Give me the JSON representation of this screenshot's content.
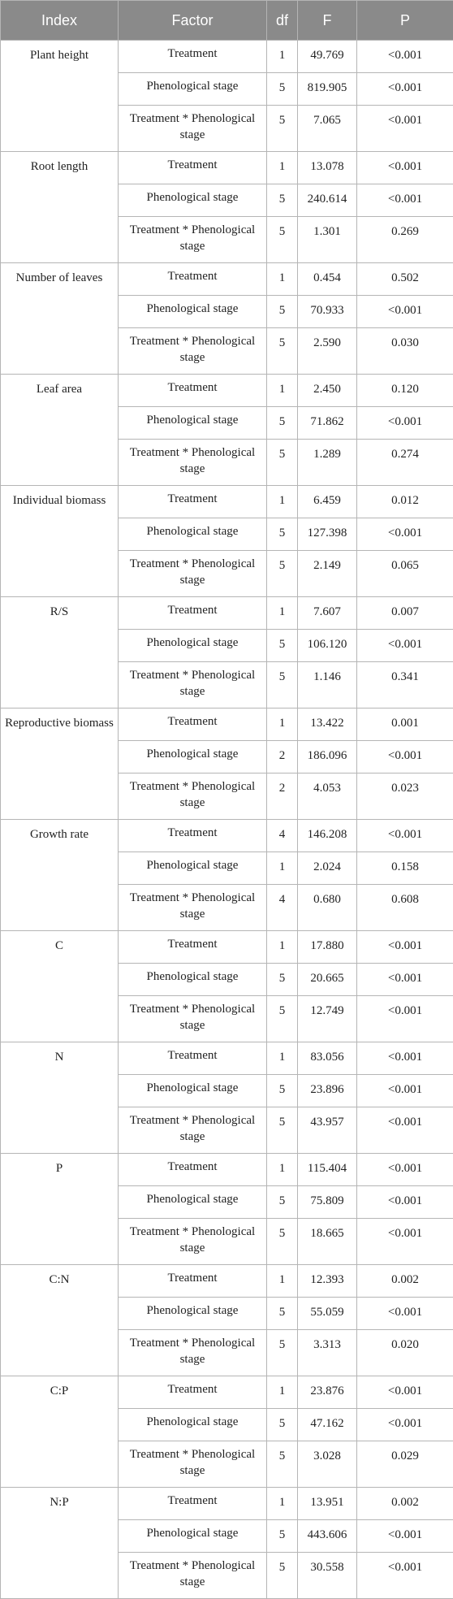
{
  "table": {
    "headers": [
      "Index",
      "Factor",
      "df",
      "F",
      "P"
    ],
    "groups": [
      {
        "index": "Plant height",
        "rows": [
          {
            "factor": "Treatment",
            "df": "1",
            "f": "49.769",
            "p": "<0.001"
          },
          {
            "factor": "Phenological stage",
            "df": "5",
            "f": "819.905",
            "p": "<0.001"
          },
          {
            "factor": "Treatment * Phenological stage",
            "df": "5",
            "f": "7.065",
            "p": "<0.001"
          }
        ]
      },
      {
        "index": "Root length",
        "rows": [
          {
            "factor": "Treatment",
            "df": "1",
            "f": "13.078",
            "p": "<0.001"
          },
          {
            "factor": "Phenological stage",
            "df": "5",
            "f": "240.614",
            "p": "<0.001"
          },
          {
            "factor": "Treatment * Phenological stage",
            "df": "5",
            "f": "1.301",
            "p": "0.269"
          }
        ]
      },
      {
        "index": "Number of leaves",
        "rows": [
          {
            "factor": "Treatment",
            "df": "1",
            "f": "0.454",
            "p": "0.502"
          },
          {
            "factor": "Phenological stage",
            "df": "5",
            "f": "70.933",
            "p": "<0.001"
          },
          {
            "factor": "Treatment * Phenological stage",
            "df": "5",
            "f": "2.590",
            "p": "0.030"
          }
        ]
      },
      {
        "index": "Leaf area",
        "rows": [
          {
            "factor": "Treatment",
            "df": "1",
            "f": "2.450",
            "p": "0.120"
          },
          {
            "factor": "Phenological stage",
            "df": "5",
            "f": "71.862",
            "p": "<0.001"
          },
          {
            "factor": "Treatment * Phenological stage",
            "df": "5",
            "f": "1.289",
            "p": "0.274"
          }
        ]
      },
      {
        "index": "Individual biomass",
        "rows": [
          {
            "factor": "Treatment",
            "df": "1",
            "f": "6.459",
            "p": "0.012"
          },
          {
            "factor": "Phenological stage",
            "df": "5",
            "f": "127.398",
            "p": "<0.001"
          },
          {
            "factor": "Treatment * Phenological stage",
            "df": "5",
            "f": "2.149",
            "p": "0.065"
          }
        ]
      },
      {
        "index": "R/S",
        "rows": [
          {
            "factor": "Treatment",
            "df": "1",
            "f": "7.607",
            "p": "0.007"
          },
          {
            "factor": "Phenological stage",
            "df": "5",
            "f": "106.120",
            "p": "<0.001"
          },
          {
            "factor": "Treatment * Phenological stage",
            "df": "5",
            "f": "1.146",
            "p": "0.341"
          }
        ]
      },
      {
        "index": "Reproductive biomass",
        "rows": [
          {
            "factor": "Treatment",
            "df": "1",
            "f": "13.422",
            "p": "0.001"
          },
          {
            "factor": "Phenological stage",
            "df": "2",
            "f": "186.096",
            "p": "<0.001"
          },
          {
            "factor": "Treatment * Phenological stage",
            "df": "2",
            "f": "4.053",
            "p": "0.023"
          }
        ]
      },
      {
        "index": "Growth rate",
        "rows": [
          {
            "factor": "Treatment",
            "df": "4",
            "f": "146.208",
            "p": "<0.001"
          },
          {
            "factor": "Phenological stage",
            "df": "1",
            "f": "2.024",
            "p": "0.158"
          },
          {
            "factor": "Treatment * Phenological stage",
            "df": "4",
            "f": "0.680",
            "p": "0.608"
          }
        ]
      },
      {
        "index": "C",
        "rows": [
          {
            "factor": "Treatment",
            "df": "1",
            "f": "17.880",
            "p": "<0.001"
          },
          {
            "factor": "Phenological stage",
            "df": "5",
            "f": "20.665",
            "p": "<0.001"
          },
          {
            "factor": "Treatment * Phenological stage",
            "df": "5",
            "f": "12.749",
            "p": "<0.001"
          }
        ]
      },
      {
        "index": "N",
        "rows": [
          {
            "factor": "Treatment",
            "df": "1",
            "f": "83.056",
            "p": "<0.001"
          },
          {
            "factor": "Phenological stage",
            "df": "5",
            "f": "23.896",
            "p": "<0.001"
          },
          {
            "factor": "Treatment * Phenological stage",
            "df": "5",
            "f": "43.957",
            "p": "<0.001"
          }
        ]
      },
      {
        "index": "P",
        "rows": [
          {
            "factor": "Treatment",
            "df": "1",
            "f": "115.404",
            "p": "<0.001"
          },
          {
            "factor": "Phenological stage",
            "df": "5",
            "f": "75.809",
            "p": "<0.001"
          },
          {
            "factor": "Treatment * Phenological stage",
            "df": "5",
            "f": "18.665",
            "p": "<0.001"
          }
        ]
      },
      {
        "index": "C:N",
        "rows": [
          {
            "factor": "Treatment",
            "df": "1",
            "f": "12.393",
            "p": "0.002"
          },
          {
            "factor": "Phenological stage",
            "df": "5",
            "f": "55.059",
            "p": "<0.001"
          },
          {
            "factor": "Treatment * Phenological stage",
            "df": "5",
            "f": "3.313",
            "p": "0.020"
          }
        ]
      },
      {
        "index": "C:P",
        "rows": [
          {
            "factor": "Treatment",
            "df": "1",
            "f": "23.876",
            "p": "<0.001"
          },
          {
            "factor": "Phenological stage",
            "df": "5",
            "f": "47.162",
            "p": "<0.001"
          },
          {
            "factor": "Treatment * Phenological stage",
            "df": "5",
            "f": "3.028",
            "p": "0.029"
          }
        ]
      },
      {
        "index": "N:P",
        "rows": [
          {
            "factor": "Treatment",
            "df": "1",
            "f": "13.951",
            "p": "0.002"
          },
          {
            "factor": "Phenological stage",
            "df": "5",
            "f": "443.606",
            "p": "<0.001"
          },
          {
            "factor": "Treatment * Phenological stage",
            "df": "5",
            "f": "30.558",
            "p": "<0.001"
          }
        ]
      }
    ]
  }
}
